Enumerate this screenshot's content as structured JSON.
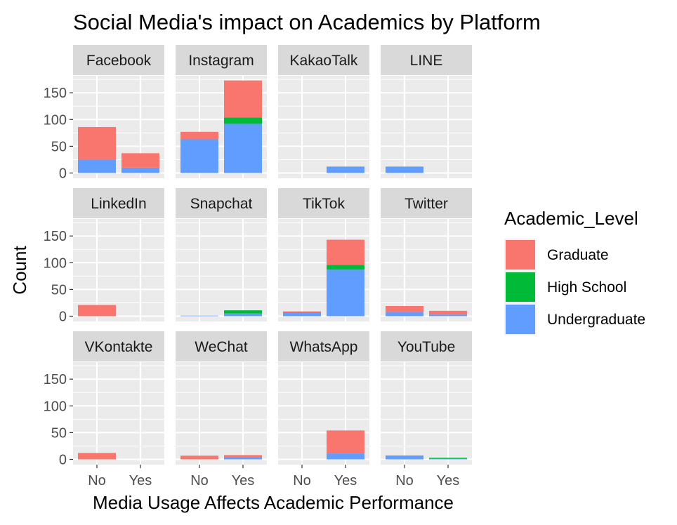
{
  "chart_data": {
    "type": "bar",
    "subtype": "stacked-faceted",
    "title": "Social Media's impact on Academics by Platform",
    "xlabel": "Media Usage Affects Academic Performance",
    "ylabel": "Count",
    "categories": [
      "No",
      "Yes"
    ],
    "y_ticks": [
      0,
      50,
      100,
      150
    ],
    "ylim": [
      0,
      180
    ],
    "grid": true,
    "legend": {
      "title": "Academic_Level",
      "placement": "right",
      "entries": [
        {
          "name": "Graduate",
          "color": "#F8766D"
        },
        {
          "name": "High School",
          "color": "#00BA38"
        },
        {
          "name": "Undergraduate",
          "color": "#619CFF"
        }
      ]
    },
    "stack_order": [
      "Undergraduate",
      "High School",
      "Graduate"
    ],
    "facets": [
      {
        "panel": "Facebook",
        "bars": {
          "No": {
            "Graduate": 61,
            "High School": 0,
            "Undergraduate": 25
          },
          "Yes": {
            "Graduate": 27,
            "High School": 0,
            "Undergraduate": 10
          }
        }
      },
      {
        "panel": "Instagram",
        "bars": {
          "No": {
            "Graduate": 14,
            "High School": 0,
            "Undergraduate": 63
          },
          "Yes": {
            "Graduate": 69,
            "High School": 12,
            "Undergraduate": 92
          }
        }
      },
      {
        "panel": "KakaoTalk",
        "bars": {
          "No": {
            "Graduate": 0,
            "High School": 0,
            "Undergraduate": 0
          },
          "Yes": {
            "Graduate": 0,
            "High School": 0,
            "Undergraduate": 12
          }
        }
      },
      {
        "panel": "LINE",
        "bars": {
          "No": {
            "Graduate": 0,
            "High School": 0,
            "Undergraduate": 12
          },
          "Yes": {
            "Graduate": 0,
            "High School": 0,
            "Undergraduate": 0
          }
        }
      },
      {
        "panel": "LinkedIn",
        "bars": {
          "No": {
            "Graduate": 21,
            "High School": 0,
            "Undergraduate": 0
          },
          "Yes": {
            "Graduate": 0,
            "High School": 0,
            "Undergraduate": 0
          }
        }
      },
      {
        "panel": "Snapchat",
        "bars": {
          "No": {
            "Graduate": 0,
            "High School": 0,
            "Undergraduate": 1
          },
          "Yes": {
            "Graduate": 0,
            "High School": 6,
            "Undergraduate": 5
          }
        }
      },
      {
        "panel": "TikTok",
        "bars": {
          "No": {
            "Graduate": 2,
            "High School": 1,
            "Undergraduate": 6
          },
          "Yes": {
            "Graduate": 47,
            "High School": 9,
            "Undergraduate": 87
          }
        }
      },
      {
        "panel": "Twitter",
        "bars": {
          "No": {
            "Graduate": 11,
            "High School": 0,
            "Undergraduate": 8
          },
          "Yes": {
            "Graduate": 7,
            "High School": 0,
            "Undergraduate": 3
          }
        }
      },
      {
        "panel": "VKontakte",
        "bars": {
          "No": {
            "Graduate": 12,
            "High School": 0,
            "Undergraduate": 0
          },
          "Yes": {
            "Graduate": 0,
            "High School": 0,
            "Undergraduate": 0
          }
        }
      },
      {
        "panel": "WeChat",
        "bars": {
          "No": {
            "Graduate": 7,
            "High School": 0,
            "Undergraduate": 0
          },
          "Yes": {
            "Graduate": 4,
            "High School": 0,
            "Undergraduate": 4
          }
        }
      },
      {
        "panel": "WhatsApp",
        "bars": {
          "No": {
            "Graduate": 0,
            "High School": 0,
            "Undergraduate": 0
          },
          "Yes": {
            "Graduate": 43,
            "High School": 0,
            "Undergraduate": 11
          }
        }
      },
      {
        "panel": "YouTube",
        "bars": {
          "No": {
            "Graduate": 0,
            "High School": 1,
            "Undergraduate": 6
          },
          "Yes": {
            "Graduate": 0,
            "High School": 2,
            "Undergraduate": 1
          }
        }
      }
    ]
  }
}
